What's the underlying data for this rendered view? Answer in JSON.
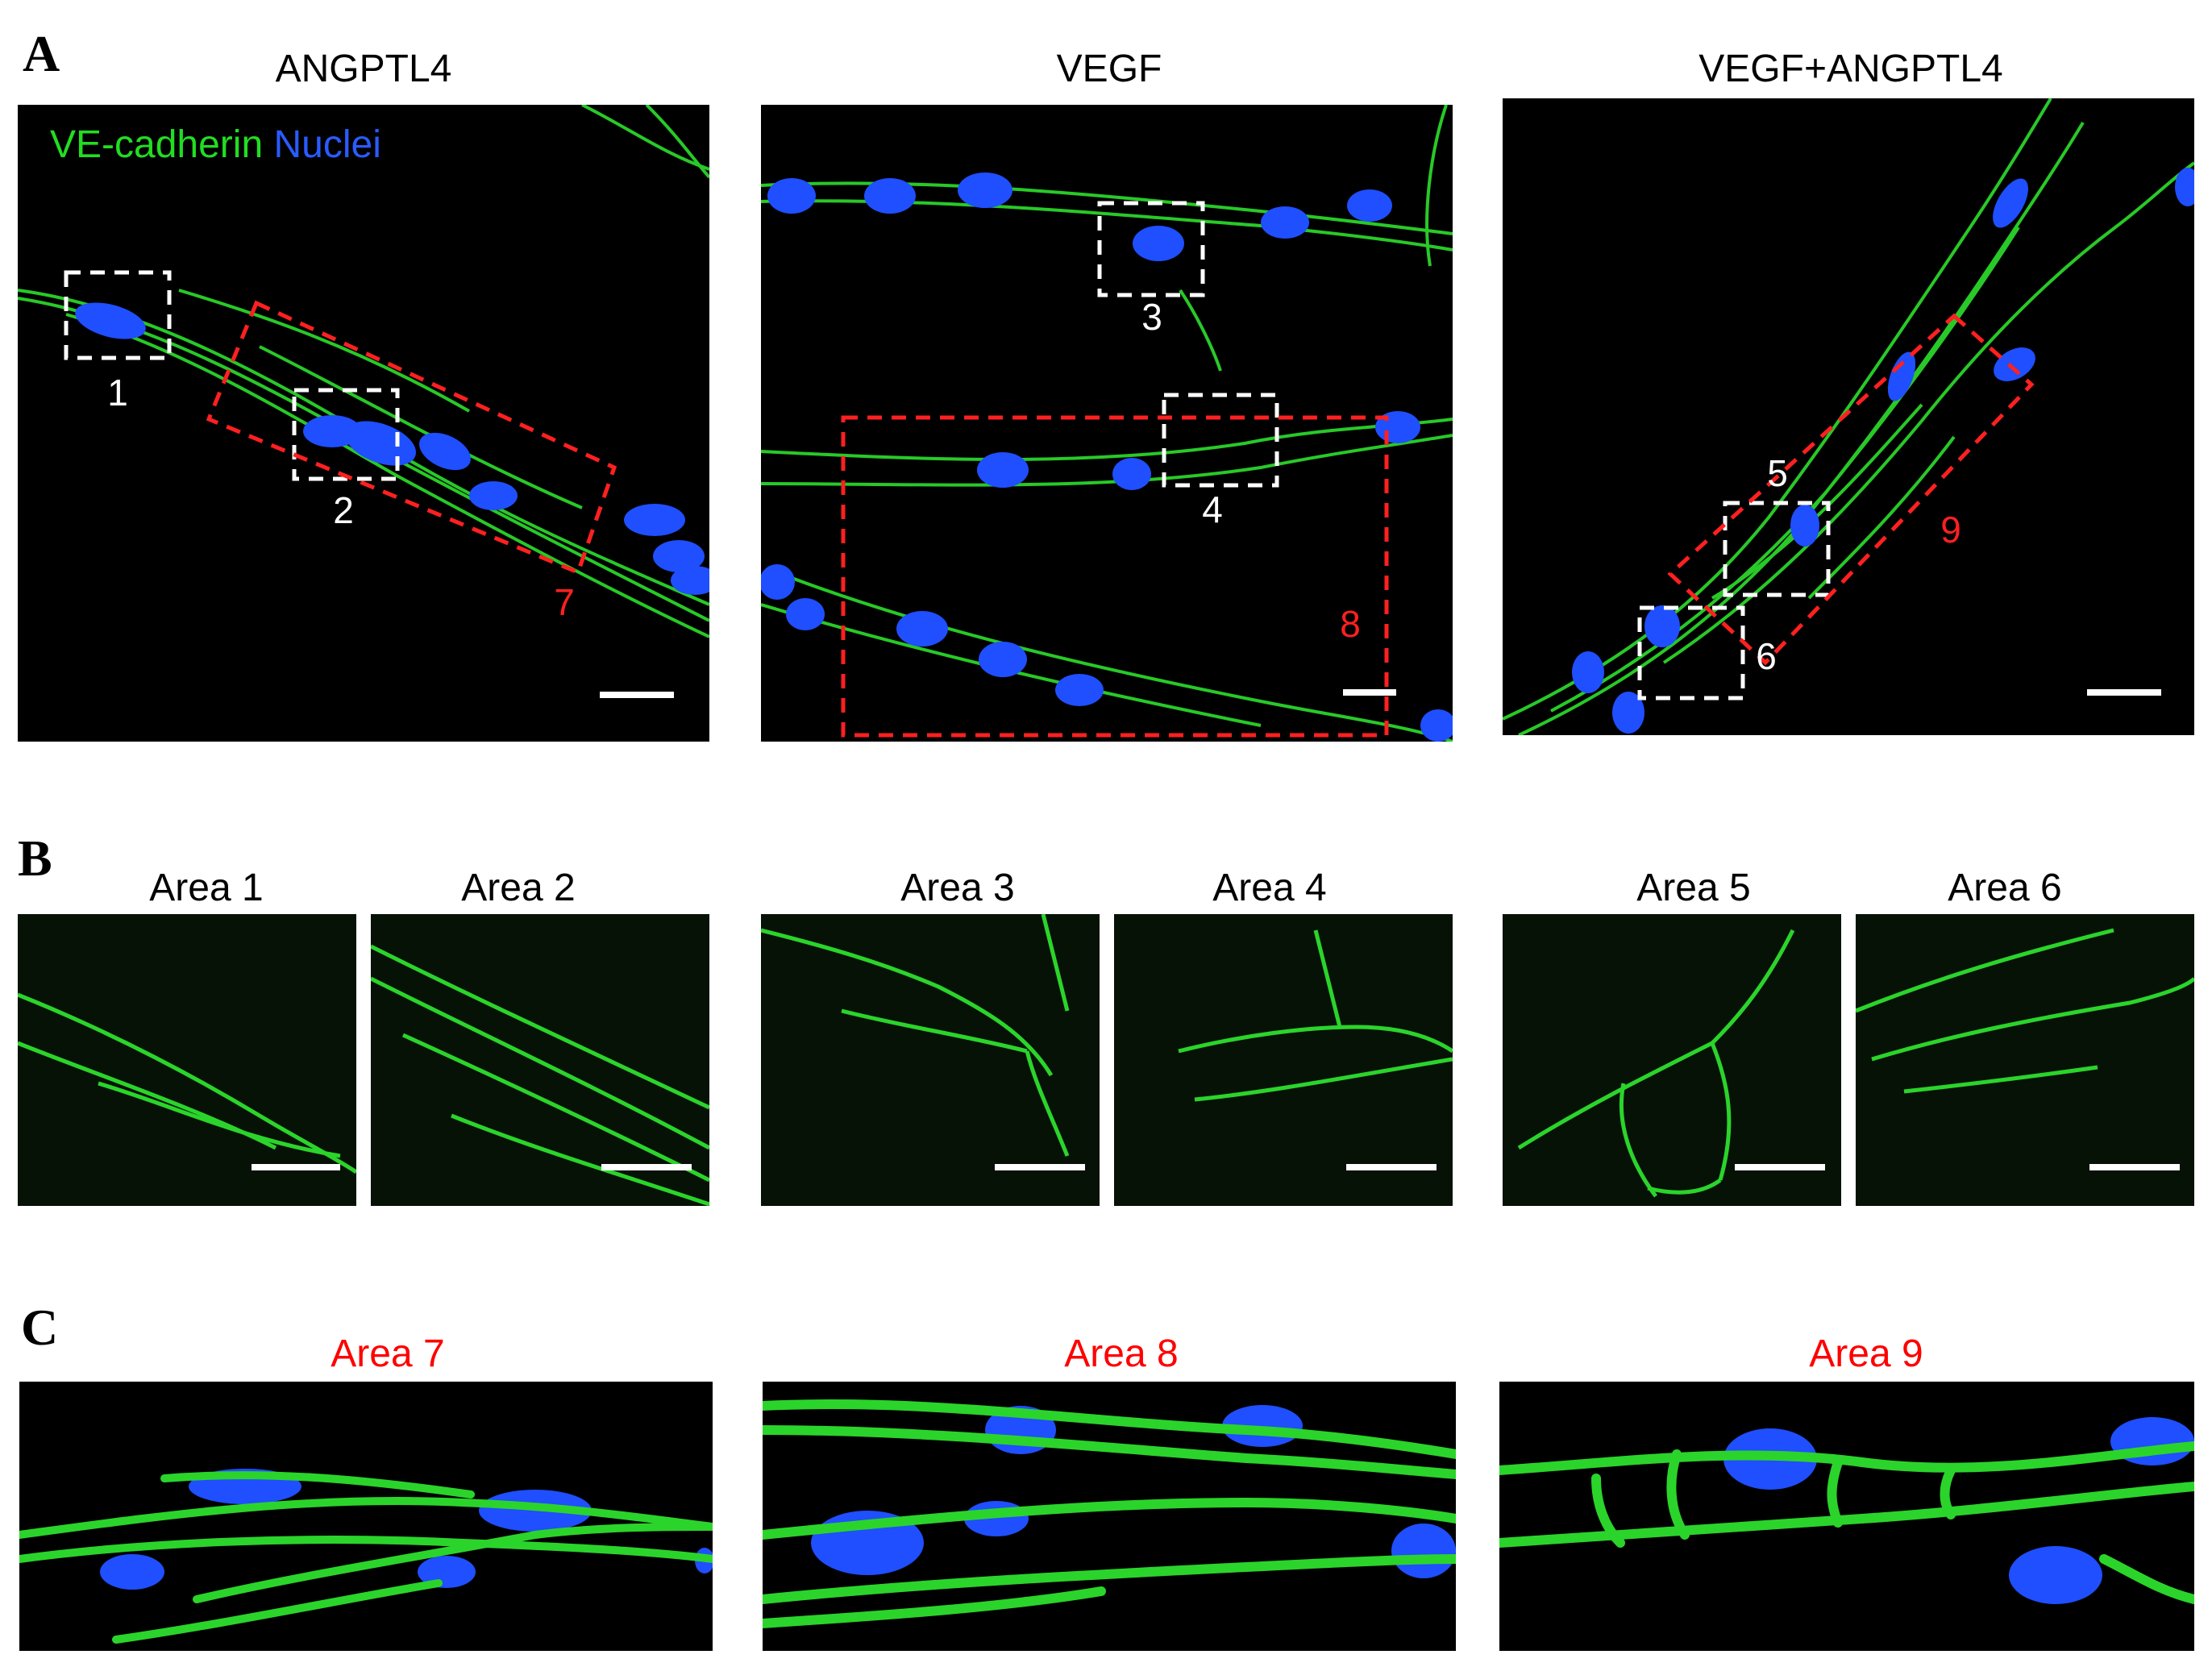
{
  "panels": {
    "A": {
      "letter": "A",
      "columns": [
        {
          "title": "ANGPTL4",
          "box_labels": [
            "1",
            "2"
          ],
          "red_label": "7"
        },
        {
          "title": "VEGF",
          "box_labels": [
            "3",
            "4"
          ],
          "red_label": "8"
        },
        {
          "title": "VEGF+ANGPTL4",
          "box_labels": [
            "5",
            "6"
          ],
          "red_label": "9"
        }
      ],
      "legend": {
        "vecad": "VE-cadherin",
        "nuclei": "Nuclei",
        "vecad_color": "#22dd22",
        "nuclei_color": "#2a5bff"
      }
    },
    "B": {
      "letter": "B",
      "titles": [
        "Area 1",
        "Area 2",
        "Area 3",
        "Area 4",
        "Area 5",
        "Area 6"
      ]
    },
    "C": {
      "letter": "C",
      "titles": [
        "Area 7",
        "Area 8",
        "Area 9"
      ],
      "title_color": "#ff0000"
    }
  },
  "colors": {
    "membrane": "#2bd42b",
    "nucleus": "#1f4fff",
    "dashed_white": "#ffffff",
    "dashed_red": "#ff2020"
  }
}
